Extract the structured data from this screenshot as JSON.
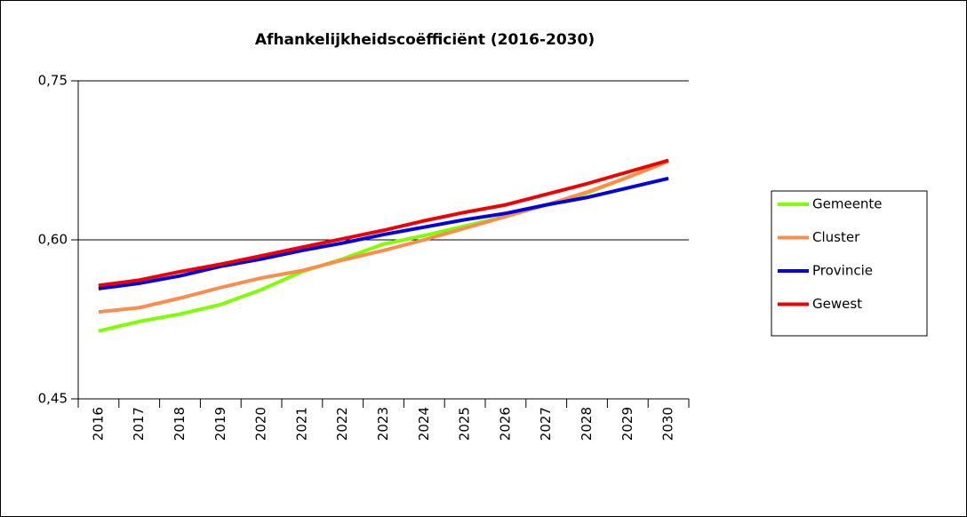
{
  "chart_data": {
    "type": "line",
    "title": "Afhankelijkheidscoëfficiënt (2016-2030)",
    "categories": [
      "2016",
      "2017",
      "2018",
      "2019",
      "2020",
      "2021",
      "2022",
      "2023",
      "2024",
      "2025",
      "2026",
      "2027",
      "2028",
      "2029",
      "2030"
    ],
    "series": [
      {
        "name": "Gemeente",
        "color": "#7fff00",
        "values": [
          0.514,
          0.523,
          0.53,
          0.539,
          0.553,
          0.57,
          0.582,
          0.596,
          0.604,
          0.613,
          0.622,
          0.633,
          0.644,
          0.659,
          0.675
        ]
      },
      {
        "name": "Cluster",
        "color": "#ff8c4c",
        "values": [
          0.532,
          0.536,
          0.545,
          0.555,
          0.564,
          0.571,
          0.581,
          0.59,
          0.6,
          0.611,
          0.622,
          0.633,
          0.645,
          0.659,
          0.674
        ]
      },
      {
        "name": "Provincie",
        "color": "#0000e0",
        "values": [
          0.554,
          0.559,
          0.566,
          0.575,
          0.582,
          0.59,
          0.597,
          0.605,
          0.612,
          0.619,
          0.625,
          0.633,
          0.64,
          0.649,
          0.658
        ]
      },
      {
        "name": "Gewest",
        "color": "#ee0000",
        "values": [
          0.557,
          0.562,
          0.57,
          0.577,
          0.585,
          0.593,
          0.601,
          0.609,
          0.618,
          0.626,
          0.633,
          0.643,
          0.653,
          0.664,
          0.675
        ]
      }
    ],
    "ylim": [
      0.45,
      0.75
    ],
    "yticks": [
      {
        "value": 0.45,
        "label": "0,45"
      },
      {
        "value": 0.6,
        "label": "0,60"
      },
      {
        "value": 0.75,
        "label": "0,75"
      }
    ],
    "grid": true,
    "legend": "right"
  }
}
